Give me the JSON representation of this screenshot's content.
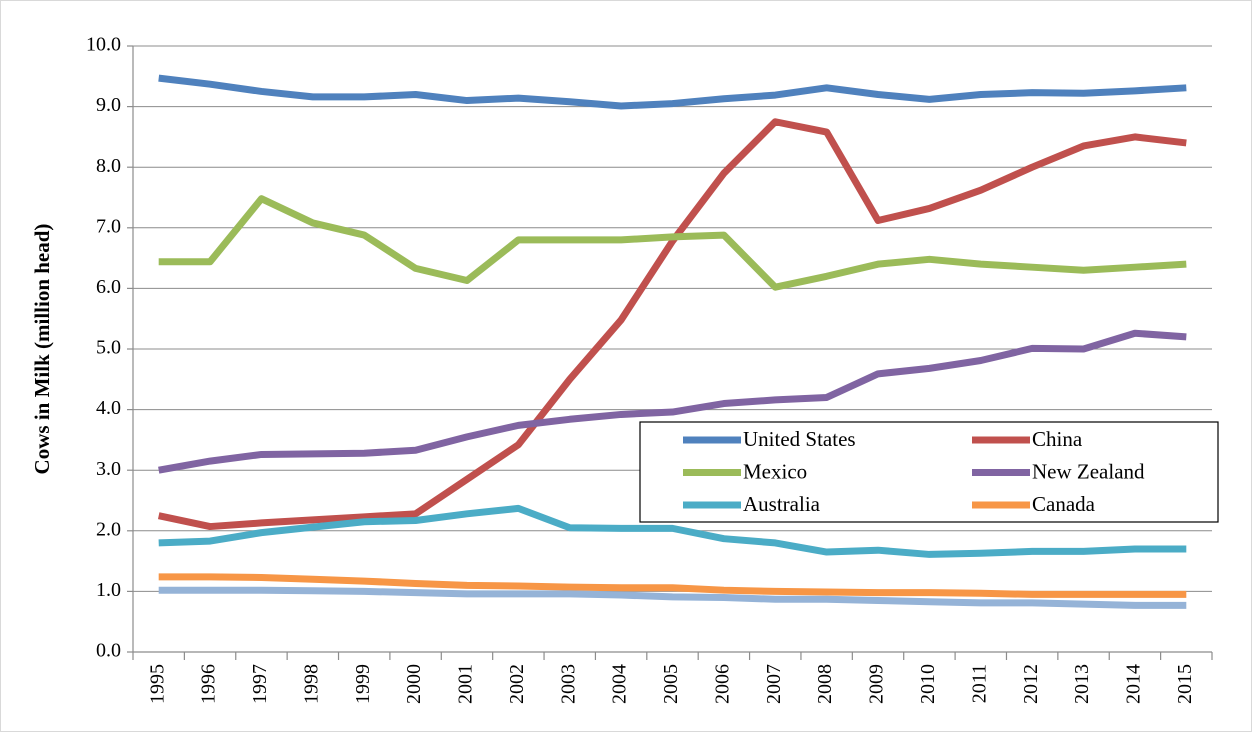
{
  "chart_data": {
    "type": "line",
    "y_label": "Cows in Milk (million head)",
    "categories": [
      "1995",
      "1996",
      "1997",
      "1998",
      "1999",
      "2000",
      "2001",
      "2002",
      "2003",
      "2004",
      "2005",
      "2006",
      "2007",
      "2008",
      "2009",
      "2010",
      "2011",
      "2012",
      "2013",
      "2014",
      "2015"
    ],
    "series": [
      {
        "name": "United States",
        "color": "#4f81bd",
        "values": [
          9.47,
          9.37,
          9.25,
          9.16,
          9.16,
          9.2,
          9.1,
          9.14,
          9.08,
          9.01,
          9.05,
          9.13,
          9.19,
          9.31,
          9.2,
          9.12,
          9.2,
          9.23,
          9.22,
          9.26,
          9.31
        ]
      },
      {
        "name": "China",
        "color": "#c0504d",
        "values": [
          2.25,
          2.07,
          2.13,
          2.18,
          2.23,
          2.28,
          2.85,
          3.42,
          4.5,
          5.48,
          6.78,
          7.9,
          8.75,
          8.58,
          7.12,
          7.32,
          7.62,
          8.0,
          8.35,
          8.5,
          8.4
        ]
      },
      {
        "name": "Mexico",
        "color": "#9bbb59",
        "values": [
          6.44,
          6.44,
          7.48,
          7.08,
          6.88,
          6.33,
          6.13,
          6.8,
          6.8,
          6.8,
          6.85,
          6.88,
          6.02,
          6.2,
          6.4,
          6.48,
          6.4,
          6.35,
          6.3,
          6.35,
          6.4
        ]
      },
      {
        "name": "New Zealand",
        "color": "#8064a2",
        "values": [
          3.0,
          3.15,
          3.26,
          3.27,
          3.28,
          3.33,
          3.55,
          3.74,
          3.84,
          3.92,
          3.96,
          4.1,
          4.16,
          4.2,
          4.59,
          4.68,
          4.81,
          5.01,
          5.0,
          5.26,
          5.2
        ]
      },
      {
        "name": "Australia",
        "color": "#4bacc6",
        "values": [
          1.8,
          1.83,
          1.97,
          2.06,
          2.15,
          2.17,
          2.28,
          2.37,
          2.05,
          2.04,
          2.04,
          1.87,
          1.8,
          1.65,
          1.68,
          1.61,
          1.63,
          1.66,
          1.66,
          1.7,
          1.7
        ]
      },
      {
        "name": "Canada",
        "color": "#f79646",
        "values": [
          1.24,
          1.24,
          1.23,
          1.2,
          1.17,
          1.13,
          1.1,
          1.09,
          1.07,
          1.06,
          1.06,
          1.02,
          1.0,
          0.99,
          0.98,
          0.98,
          0.97,
          0.95,
          0.95,
          0.95,
          0.95
        ]
      },
      {
        "color": "#95b3d7",
        "values": [
          1.02,
          1.02,
          1.02,
          1.01,
          1.0,
          0.98,
          0.96,
          0.96,
          0.96,
          0.94,
          0.91,
          0.9,
          0.87,
          0.87,
          0.85,
          0.83,
          0.81,
          0.81,
          0.79,
          0.77,
          0.77
        ]
      }
    ],
    "ylim": [
      0,
      10
    ],
    "yticks": [
      {
        "value": 0,
        "label": "0.0"
      },
      {
        "value": 1,
        "label": "1.0"
      },
      {
        "value": 2,
        "label": "2.0"
      },
      {
        "value": 3,
        "label": "3.0"
      },
      {
        "value": 4,
        "label": "4.0"
      },
      {
        "value": 5,
        "label": "5.0"
      },
      {
        "value": 6,
        "label": "6.0"
      },
      {
        "value": 7,
        "label": "7.0"
      },
      {
        "value": 8,
        "label": "8.0"
      },
      {
        "value": 9,
        "label": "9.0"
      },
      {
        "value": 10,
        "label": "10.0"
      }
    ],
    "grid": true
  }
}
